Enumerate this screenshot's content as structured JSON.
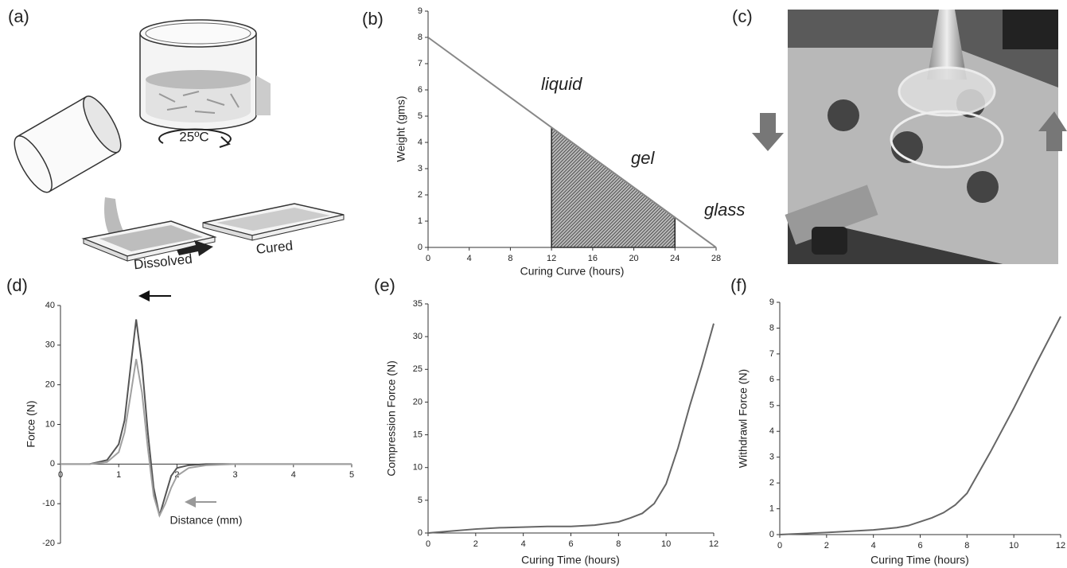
{
  "panel_labels": [
    "(a)",
    "(b)",
    "(c)",
    "(d)",
    "(e)",
    "(f)"
  ],
  "illustration": {
    "temperature": "25ºC",
    "left_label": "Dissolved",
    "right_label": "Cured"
  },
  "chart_data": [
    {
      "type": "line",
      "xlabel": "Curing Curve (hours)",
      "ylabel": "Weight (gms)",
      "x": [
        0,
        28
      ],
      "series": [
        {
          "color": "#888888",
          "values": [
            8,
            0
          ]
        }
      ],
      "shade_x": [
        12,
        24
      ],
      "annotations": [
        "liquid",
        "gel",
        "glass"
      ],
      "xlim": [
        0,
        28
      ],
      "ylim": [
        0,
        9
      ],
      "xticks": [
        0,
        4,
        8,
        12,
        16,
        20,
        24,
        28
      ],
      "yticks": [
        0,
        1,
        2,
        3,
        4,
        5,
        6,
        7,
        8,
        9
      ]
    },
    {
      "type": "line",
      "xlabel": "Distance (mm)",
      "ylabel": "Force (N)",
      "x": [
        0,
        0.5,
        0.8,
        1.0,
        1.1,
        1.2,
        1.3,
        1.4,
        1.5,
        1.6,
        1.7,
        1.8,
        1.9,
        2.0,
        2.2,
        2.5,
        3,
        4,
        5
      ],
      "series": [
        {
          "color": "#555555",
          "values": [
            0,
            0,
            1,
            5,
            11,
            24,
            36.5,
            25,
            8,
            -6,
            -13,
            -8,
            -3,
            -1,
            -0.3,
            0,
            0,
            0,
            0
          ]
        },
        {
          "color": "#a0a0a0",
          "values": [
            0,
            0,
            0.5,
            3,
            8,
            17,
            26.5,
            18,
            4,
            -8,
            -13,
            -10,
            -6,
            -3,
            -1,
            -0.3,
            0,
            0,
            0
          ]
        }
      ],
      "xlim": [
        0,
        5
      ],
      "ylim": [
        -20,
        40
      ],
      "xticks": [
        0,
        1,
        2,
        3,
        4,
        5
      ],
      "yticks": [
        -20,
        -10,
        0,
        10,
        20,
        30,
        40
      ]
    },
    {
      "type": "line",
      "xlabel": "Curing Time (hours)",
      "ylabel": "Compression Force (N)",
      "x": [
        0,
        1,
        2,
        3,
        4,
        5,
        6,
        7,
        8,
        8.5,
        9,
        9.5,
        10,
        10.5,
        11,
        11.5,
        12
      ],
      "series": [
        {
          "color": "#666666",
          "values": [
            0,
            0.3,
            0.6,
            0.8,
            0.9,
            1,
            1,
            1.2,
            1.7,
            2.3,
            3,
            4.5,
            7.5,
            13,
            19.5,
            25.5,
            32
          ]
        }
      ],
      "xlim": [
        0,
        12
      ],
      "ylim": [
        0,
        35
      ],
      "xticks": [
        0,
        2,
        4,
        6,
        8,
        10,
        12
      ],
      "yticks": [
        0,
        5,
        10,
        15,
        20,
        25,
        30,
        35
      ]
    },
    {
      "type": "line",
      "xlabel": "Curing Time (hours)",
      "ylabel": "Withdrawl Force (N)",
      "x": [
        0,
        2,
        4,
        5,
        5.5,
        6,
        6.5,
        7,
        7.5,
        8,
        9,
        10,
        11,
        12
      ],
      "series": [
        {
          "color": "#666666",
          "values": [
            0,
            0.08,
            0.18,
            0.27,
            0.35,
            0.5,
            0.65,
            0.85,
            1.15,
            1.6,
            3.2,
            4.9,
            6.7,
            8.45
          ]
        }
      ],
      "xlim": [
        0,
        12
      ],
      "ylim": [
        0,
        9
      ],
      "xticks": [
        0,
        2,
        4,
        6,
        8,
        10,
        12
      ],
      "yticks": [
        0,
        1,
        2,
        3,
        4,
        5,
        6,
        7,
        8,
        9
      ]
    }
  ]
}
